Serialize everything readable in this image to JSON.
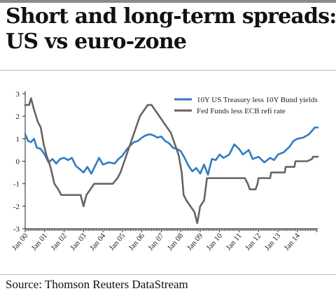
{
  "title_lines": [
    "Short and long-term spreads:",
    "US vs euro-zone"
  ],
  "source": "Source: Thomson Reuters DataStream",
  "chart_data": {
    "type": "line",
    "ylim": [
      -3,
      3
    ],
    "y_ticks": [
      "3",
      "2",
      "1",
      "0",
      "-1",
      "-2",
      "-3"
    ],
    "x_tick_labels": [
      "Jan 00",
      "Jan 01",
      "Jan 02",
      "Jan 03",
      "Jan 04",
      "Jan 05",
      "Jan 06",
      "Jan 07",
      "Jan 08",
      "Jan 09",
      "Jan 10",
      "Jan 11",
      "Jan 12",
      "Jan 13",
      "Jan 14"
    ],
    "legend_position": "top-right",
    "series": [
      {
        "name": "10Y US Treasury less 10Y Bund yields",
        "color": "#2f7bc3",
        "points": [
          [
            2000.0,
            1.2
          ],
          [
            2000.15,
            0.9
          ],
          [
            2000.3,
            0.85
          ],
          [
            2000.45,
            1.0
          ],
          [
            2000.6,
            0.6
          ],
          [
            2000.8,
            0.55
          ],
          [
            2001.0,
            0.3
          ],
          [
            2001.2,
            -0.05
          ],
          [
            2001.4,
            0.1
          ],
          [
            2001.6,
            -0.1
          ],
          [
            2001.8,
            0.1
          ],
          [
            2002.0,
            0.15
          ],
          [
            2002.2,
            0.05
          ],
          [
            2002.4,
            0.15
          ],
          [
            2002.6,
            -0.2
          ],
          [
            2002.8,
            -0.35
          ],
          [
            2003.0,
            -0.5
          ],
          [
            2003.2,
            -0.25
          ],
          [
            2003.4,
            -0.55
          ],
          [
            2003.6,
            -0.2
          ],
          [
            2003.8,
            0.15
          ],
          [
            2004.0,
            -0.15
          ],
          [
            2004.3,
            -0.05
          ],
          [
            2004.6,
            -0.1
          ],
          [
            2004.8,
            0.1
          ],
          [
            2005.0,
            0.25
          ],
          [
            2005.2,
            0.5
          ],
          [
            2005.4,
            0.7
          ],
          [
            2005.6,
            0.85
          ],
          [
            2005.8,
            0.9
          ],
          [
            2006.0,
            1.05
          ],
          [
            2006.2,
            1.15
          ],
          [
            2006.4,
            1.2
          ],
          [
            2006.6,
            1.15
          ],
          [
            2006.8,
            1.05
          ],
          [
            2007.0,
            1.1
          ],
          [
            2007.2,
            0.9
          ],
          [
            2007.4,
            0.8
          ],
          [
            2007.6,
            0.6
          ],
          [
            2007.8,
            0.55
          ],
          [
            2008.0,
            0.45
          ],
          [
            2008.2,
            0.15
          ],
          [
            2008.4,
            -0.2
          ],
          [
            2008.6,
            -0.45
          ],
          [
            2008.8,
            -0.3
          ],
          [
            2009.0,
            -0.55
          ],
          [
            2009.2,
            -0.15
          ],
          [
            2009.4,
            -0.6
          ],
          [
            2009.6,
            0.1
          ],
          [
            2009.8,
            0.05
          ],
          [
            2010.0,
            0.3
          ],
          [
            2010.2,
            0.15
          ],
          [
            2010.5,
            0.3
          ],
          [
            2010.75,
            0.75
          ],
          [
            2011.0,
            0.55
          ],
          [
            2011.2,
            0.3
          ],
          [
            2011.5,
            0.5
          ],
          [
            2011.7,
            0.1
          ],
          [
            2012.0,
            0.2
          ],
          [
            2012.3,
            -0.05
          ],
          [
            2012.6,
            0.15
          ],
          [
            2012.8,
            0.05
          ],
          [
            2013.0,
            0.3
          ],
          [
            2013.3,
            0.4
          ],
          [
            2013.6,
            0.65
          ],
          [
            2013.8,
            0.9
          ],
          [
            2014.0,
            1.0
          ],
          [
            2014.3,
            1.05
          ],
          [
            2014.6,
            1.2
          ],
          [
            2014.9,
            1.5
          ],
          [
            2015.05,
            1.5
          ]
        ]
      },
      {
        "name": "Fed Funds less ECB refi rate",
        "color": "#6b6261",
        "points": [
          [
            2000.0,
            2.5
          ],
          [
            2000.2,
            2.5
          ],
          [
            2000.3,
            2.8
          ],
          [
            2000.45,
            2.3
          ],
          [
            2000.65,
            1.75
          ],
          [
            2000.8,
            1.5
          ],
          [
            2000.95,
            0.75
          ],
          [
            2001.1,
            0.25
          ],
          [
            2001.3,
            -0.25
          ],
          [
            2001.5,
            -1.0
          ],
          [
            2001.7,
            -1.25
          ],
          [
            2001.85,
            -1.5
          ],
          [
            2002.0,
            -1.5
          ],
          [
            2002.5,
            -1.5
          ],
          [
            2002.85,
            -1.5
          ],
          [
            2003.0,
            -2.0
          ],
          [
            2003.15,
            -1.5
          ],
          [
            2003.35,
            -1.25
          ],
          [
            2003.55,
            -1.0
          ],
          [
            2004.0,
            -1.0
          ],
          [
            2004.5,
            -1.0
          ],
          [
            2004.75,
            -0.75
          ],
          [
            2004.9,
            -0.5
          ],
          [
            2005.1,
            0.0
          ],
          [
            2005.3,
            0.5
          ],
          [
            2005.5,
            1.0
          ],
          [
            2005.7,
            1.5
          ],
          [
            2005.9,
            2.0
          ],
          [
            2006.1,
            2.25
          ],
          [
            2006.3,
            2.5
          ],
          [
            2006.5,
            2.5
          ],
          [
            2006.7,
            2.25
          ],
          [
            2006.9,
            2.0
          ],
          [
            2007.1,
            1.75
          ],
          [
            2007.3,
            1.5
          ],
          [
            2007.5,
            1.25
          ],
          [
            2007.7,
            0.75
          ],
          [
            2007.9,
            0.25
          ],
          [
            2008.05,
            -0.5
          ],
          [
            2008.15,
            -1.5
          ],
          [
            2008.3,
            -1.75
          ],
          [
            2008.5,
            -2.0
          ],
          [
            2008.7,
            -2.25
          ],
          [
            2008.85,
            -2.75
          ],
          [
            2009.0,
            -2.0
          ],
          [
            2009.2,
            -1.75
          ],
          [
            2009.35,
            -0.75
          ],
          [
            2010.0,
            -0.75
          ],
          [
            2011.0,
            -0.75
          ],
          [
            2011.3,
            -0.75
          ],
          [
            2011.45,
            -1.0
          ],
          [
            2011.55,
            -1.25
          ],
          [
            2011.85,
            -1.25
          ],
          [
            2011.95,
            -1.0
          ],
          [
            2012.0,
            -0.75
          ],
          [
            2012.6,
            -0.75
          ],
          [
            2012.65,
            -0.5
          ],
          [
            2013.35,
            -0.5
          ],
          [
            2013.4,
            -0.25
          ],
          [
            2013.85,
            -0.25
          ],
          [
            2013.9,
            0.0
          ],
          [
            2014.5,
            0.0
          ],
          [
            2014.75,
            0.1
          ],
          [
            2014.8,
            0.2
          ],
          [
            2015.05,
            0.2
          ]
        ]
      }
    ]
  }
}
